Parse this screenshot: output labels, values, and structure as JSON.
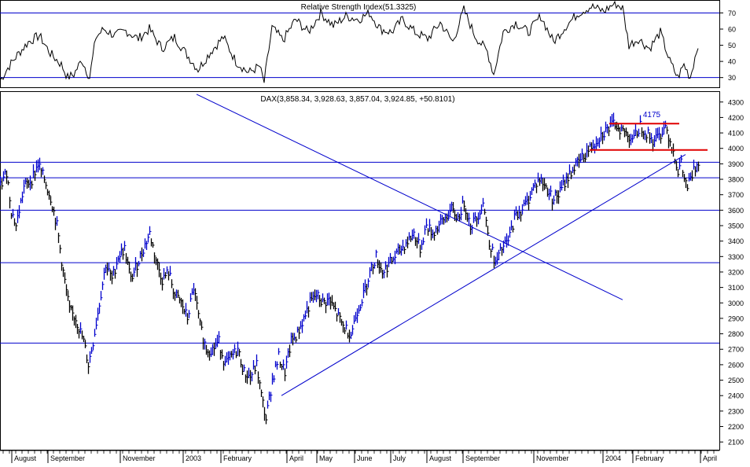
{
  "chart_data": [
    {
      "type": "line",
      "title": "Relative Strength Index(51.3325)",
      "ylim": [
        24,
        78
      ],
      "yticks": [
        30,
        40,
        50,
        60,
        70
      ],
      "reference_lines": [
        70,
        30
      ],
      "grid": false,
      "series": [
        {
          "name": "",
          "color": "#000000",
          "x_index": [
            0,
            10,
            22,
            36,
            50,
            64,
            78,
            86,
            94,
            104,
            114,
            122,
            132,
            146,
            160,
            176,
            190,
            206,
            222,
            238,
            252,
            268,
            284,
            300,
            316,
            330,
            336,
            346,
            360,
            376,
            392,
            408,
            424,
            440,
            456,
            470,
            484,
            498,
            512,
            528,
            544,
            560,
            576,
            590,
            604,
            620,
            628,
            640,
            656,
            672,
            688,
            704,
            720,
            736,
            752,
            768,
            782,
            792,
            800,
            812,
            826,
            840,
            852,
            862,
            870,
            878,
            888
          ],
          "values": [
            28,
            36,
            44,
            52,
            56,
            45,
            38,
            30,
            32,
            41,
            30,
            55,
            60,
            56,
            59,
            54,
            60,
            48,
            55,
            44,
            35,
            46,
            55,
            40,
            33,
            37,
            27,
            61,
            53,
            66,
            58,
            70,
            62,
            68,
            66,
            70,
            60,
            58,
            66,
            58,
            54,
            64,
            52,
            72,
            56,
            46,
            32,
            58,
            64,
            58,
            68,
            52,
            62,
            70,
            74,
            71,
            76,
            73,
            50,
            54,
            48,
            58,
            40,
            30,
            38,
            30,
            51
          ]
        }
      ]
    },
    {
      "type": "line",
      "title": "DAX(3,858.34, 3,928.63, 3,857.04, 3,924.85, +50.8101)",
      "ylim": [
        2050,
        4370
      ],
      "yticks": [
        2100,
        2200,
        2300,
        2400,
        2500,
        2600,
        2700,
        2800,
        2900,
        3000,
        3100,
        3200,
        3300,
        3400,
        3500,
        3600,
        3700,
        3800,
        3900,
        4000,
        4100,
        4200,
        4300
      ],
      "horizontal_lines": [
        3910,
        3810,
        3600,
        3260,
        2740
      ],
      "annotations": [
        {
          "text": "4175",
          "color": "#0000cc"
        }
      ],
      "x_month_labels": [
        "August",
        "September",
        "November",
        "2003",
        "February",
        "April",
        "May",
        "June",
        "July",
        "August",
        "September",
        "November",
        "2004",
        "February",
        "April"
      ],
      "series": [
        {
          "name": "",
          "color": "#0000cc",
          "x_index": [
            0,
            8,
            14,
            20,
            30,
            40,
            48,
            56,
            64,
            72,
            80,
            88,
            96,
            106,
            112,
            118,
            126,
            134,
            142,
            150,
            158,
            166,
            174,
            182,
            190,
            198,
            206,
            214,
            222,
            230,
            238,
            246,
            254,
            262,
            270,
            278,
            286,
            294,
            302,
            310,
            318,
            326,
            332,
            338,
            346,
            354,
            362,
            370,
            378,
            386,
            394,
            402,
            410,
            418,
            426,
            436,
            446,
            454,
            462,
            470,
            478,
            486,
            494,
            502,
            510,
            518,
            526,
            534,
            542,
            550,
            558,
            566,
            574,
            582,
            590,
            598,
            606,
            614,
            622,
            630,
            638,
            646,
            654,
            662,
            670,
            678,
            686,
            694,
            702,
            710,
            718,
            726,
            734,
            742,
            750,
            758,
            766,
            774,
            782,
            790,
            798,
            806,
            814,
            822,
            830,
            838,
            846,
            852,
            858,
            862,
            866,
            870,
            874,
            878,
            882,
            888
          ],
          "values": [
            3750,
            3850,
            3600,
            3500,
            3750,
            3800,
            3900,
            3800,
            3680,
            3500,
            3200,
            2950,
            2900,
            2750,
            2600,
            2750,
            3000,
            3250,
            3150,
            3300,
            3350,
            3150,
            3250,
            3350,
            3450,
            3280,
            3150,
            3200,
            3050,
            3000,
            2900,
            3100,
            2850,
            2700,
            2700,
            2750,
            2600,
            2650,
            2700,
            2550,
            2520,
            2600,
            2400,
            2250,
            2500,
            2650,
            2550,
            2750,
            2800,
            2900,
            3000,
            3050,
            3000,
            3020,
            2950,
            2850,
            2800,
            2950,
            3050,
            3200,
            3300,
            3200,
            3250,
            3300,
            3350,
            3400,
            3450,
            3350,
            3500,
            3450,
            3500,
            3550,
            3600,
            3550,
            3650,
            3500,
            3550,
            3650,
            3400,
            3250,
            3350,
            3400,
            3550,
            3600,
            3650,
            3750,
            3800,
            3750,
            3680,
            3700,
            3780,
            3850,
            3900,
            3950,
            4000,
            4050,
            4100,
            4130,
            4160,
            4120,
            4090,
            4060,
            4150,
            4100,
            4050,
            4080,
            4150,
            4050,
            3950,
            3850,
            3900,
            3800,
            3750,
            3800,
            3850,
            3925
          ]
        }
      ],
      "trendlines": [
        {
          "color": "#0000cc",
          "x_index": [
            250,
            792
          ],
          "values": [
            4350,
            3020
          ]
        },
        {
          "color": "#0000cc",
          "x_index": [
            358,
            872
          ],
          "values": [
            2400,
            3960
          ]
        },
        {
          "color": "#e00000",
          "x_index": [
            775,
            864
          ],
          "values": [
            4160,
            4160
          ]
        },
        {
          "color": "#e00000",
          "x_index": [
            750,
            900
          ],
          "values": [
            3990,
            3990
          ]
        }
      ]
    }
  ]
}
